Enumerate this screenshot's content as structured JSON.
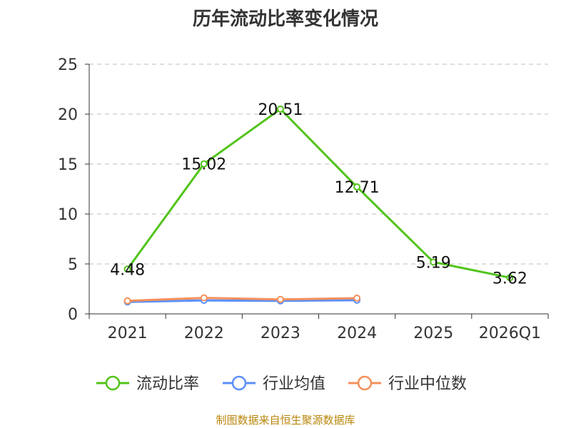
{
  "chart_data": {
    "type": "line",
    "title": "历年流动比率变化情况",
    "categories": [
      "2021",
      "2022",
      "2023",
      "2024",
      "2025",
      "2026Q1"
    ],
    "ylim": [
      0,
      25
    ],
    "yticks": [
      0,
      5,
      10,
      15,
      20,
      25
    ],
    "grid": true,
    "legend_position": "bottom",
    "series": [
      {
        "name": "流动比率",
        "color": "#52c41a",
        "values": [
          4.48,
          15.02,
          20.51,
          12.71,
          5.19,
          3.62
        ],
        "labels": [
          "4.48",
          "15.02",
          "20.51",
          "12.71",
          "5.19",
          "3.62"
        ]
      },
      {
        "name": "行业均值",
        "color": "#5b8ff9",
        "values": [
          1.2,
          1.35,
          1.3,
          1.37,
          null,
          null
        ]
      },
      {
        "name": "行业中位数",
        "color": "#f6905a",
        "values": [
          1.3,
          1.6,
          1.45,
          1.57,
          null,
          null
        ]
      }
    ]
  },
  "source_note": "制图数据来自恒生聚源数据库"
}
